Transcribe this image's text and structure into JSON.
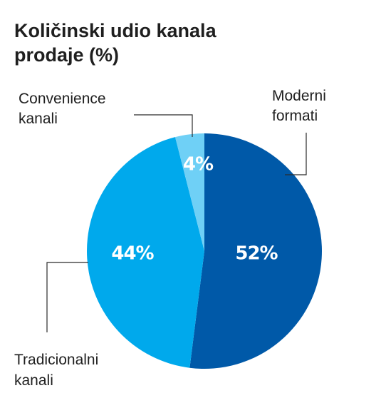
{
  "chart_data": {
    "type": "pie",
    "title_lines": [
      "Količinski udio kanala",
      "prodaje (%)"
    ],
    "slices": [
      {
        "label_lines": [
          "Moderni",
          "formati"
        ],
        "value": 52,
        "value_label": "52%",
        "color": "#0059a8"
      },
      {
        "label_lines": [
          "Tradicionalni",
          "kanali"
        ],
        "value": 44,
        "value_label": "44%",
        "color": "#00a9ec"
      },
      {
        "label_lines": [
          "Convenience",
          "kanali"
        ],
        "value": 4,
        "value_label": "4%",
        "color": "#6fd0f6"
      }
    ],
    "start_angle_deg": 0,
    "direction": "clockwise",
    "legend": "callouts"
  }
}
